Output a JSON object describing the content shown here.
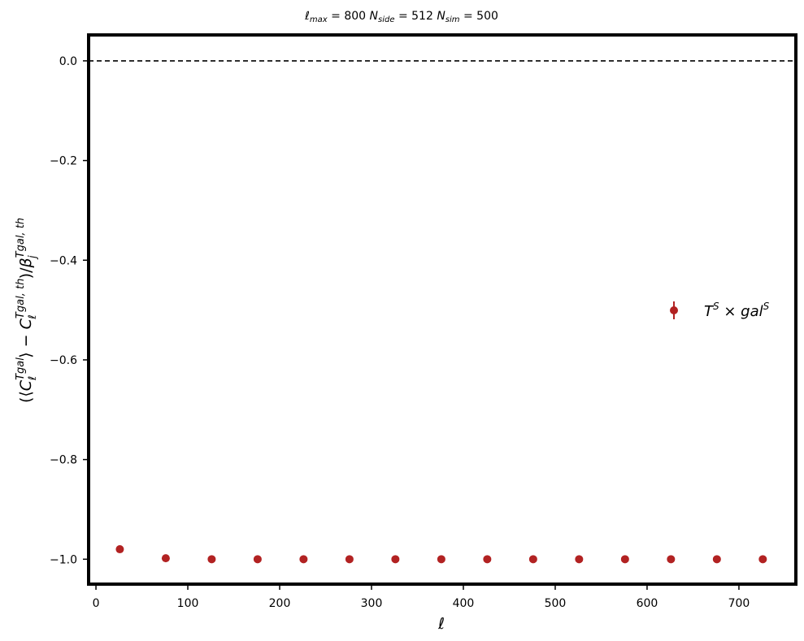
{
  "chart_data": {
    "type": "scatter",
    "title": "ℓmax = 800  Nside = 512  Nsim = 500",
    "xlabel": "ℓ",
    "ylabel": "(⟨CℓTgal⟩ − CℓTgal,th)/βjTgal,th",
    "xlim": [
      -8,
      762
    ],
    "ylim": [
      -1.05,
      0.052
    ],
    "x_ticks": [
      0,
      100,
      200,
      300,
      400,
      500,
      600,
      700
    ],
    "y_ticks": [
      0.0,
      -0.2,
      -0.4,
      -0.6,
      -0.8,
      -1.0
    ],
    "x_tick_labels": [
      "0",
      "100",
      "200",
      "300",
      "400",
      "500",
      "600",
      "700"
    ],
    "y_tick_labels": [
      "0.0",
      "−0.2",
      "−0.4",
      "−0.6",
      "−0.8",
      "−1.0"
    ],
    "reference_line": {
      "y": 0.0,
      "style": "dashed",
      "color": "#000000"
    },
    "grid": false,
    "legend_position": "center-right",
    "series": [
      {
        "name": "T^S × gal^S",
        "color": "#b22222",
        "marker": "circle",
        "error_bars": true,
        "x": [
          26,
          76,
          126,
          176,
          226,
          276,
          326,
          376,
          426,
          476,
          526,
          576,
          626,
          676,
          726
        ],
        "y": [
          -0.98,
          -0.998,
          -1.0,
          -1.0,
          -1.0,
          -1.0,
          -1.0,
          -1.0,
          -1.0,
          -1.0,
          -1.0,
          -1.0,
          -1.0,
          -1.0,
          -1.0
        ]
      }
    ]
  }
}
